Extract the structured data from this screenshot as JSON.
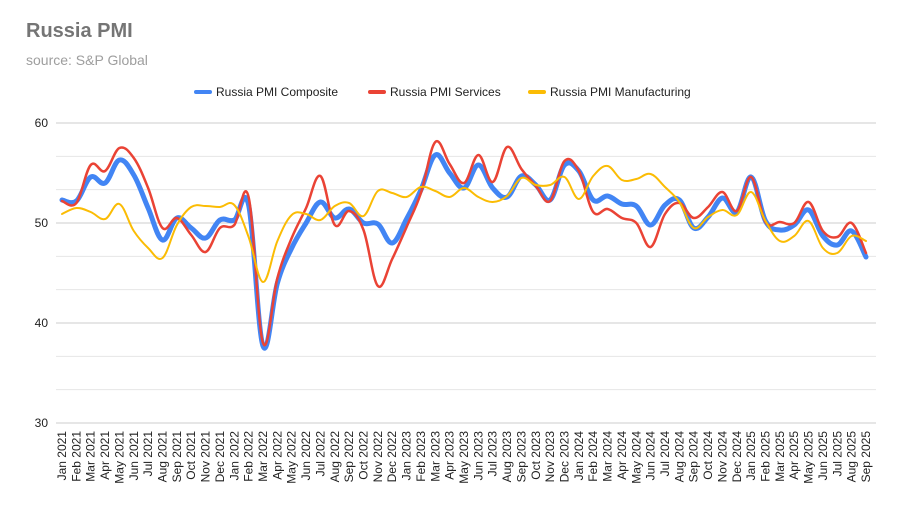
{
  "chart_data": {
    "type": "line",
    "title": "Russia PMI",
    "subtitle": "source: S&P Global",
    "ylim": [
      30,
      60
    ],
    "yticks": [
      30,
      40,
      50,
      60
    ],
    "grid": true,
    "legend_position": "top",
    "categories": [
      "Jan 2021",
      "Feb 2021",
      "Mar 2021",
      "Apr 2021",
      "May 2021",
      "Jun 2021",
      "Jul 2021",
      "Aug 2021",
      "Sep 2021",
      "Oct 2021",
      "Nov 2021",
      "Dec 2021",
      "Jan 2022",
      "Feb 2022",
      "Mar 2022",
      "Apr 2022",
      "May 2022",
      "Jun 2022",
      "Jul 2022",
      "Aug 2022",
      "Sep 2022",
      "Oct 2022",
      "Nov 2022",
      "Dec 2022",
      "Jan 2023",
      "Feb 2023",
      "Mar 2023",
      "Apr 2023",
      "May 2023",
      "Jun 2023",
      "Jul 2023",
      "Aug 2023",
      "Sep 2023",
      "Oct 2023",
      "Nov 2023",
      "Dec 2023",
      "Jan 2024",
      "Feb 2024",
      "Mar 2024",
      "Apr 2024",
      "May 2024",
      "Jun 2024",
      "Jul 2024",
      "Aug 2024",
      "Sep 2024",
      "Oct 2024",
      "Nov 2024",
      "Dec 2024",
      "Jan 2025",
      "Feb 2025",
      "Mar 2025",
      "Apr 2025",
      "May 2025",
      "Jun 2025",
      "Jul 2025",
      "Aug 2025",
      "Sep 2025"
    ],
    "series": [
      {
        "name": "Russia PMI Composite",
        "color": "#4285f4",
        "values": [
          52.3,
          52.2,
          54.6,
          54.0,
          56.3,
          54.8,
          51.5,
          48.3,
          50.5,
          49.5,
          48.5,
          50.3,
          50.3,
          51.8,
          37.7,
          44.0,
          47.5,
          50.0,
          52.1,
          50.5,
          51.4,
          50.0,
          49.9,
          48.0,
          50.4,
          53.3,
          56.8,
          55.0,
          53.5,
          55.8,
          53.5,
          52.6,
          54.7,
          53.8,
          52.3,
          55.8,
          55.2,
          52.3,
          52.7,
          51.9,
          51.7,
          49.8,
          51.8,
          52.3,
          49.5,
          50.6,
          52.5,
          51.1,
          54.6,
          50.2,
          49.3,
          49.8,
          51.3,
          48.7,
          47.8,
          49.2,
          46.6
        ]
      },
      {
        "name": "Russia PMI Services",
        "color": "#ea4335",
        "values": [
          52.2,
          52.0,
          55.8,
          55.2,
          57.5,
          56.5,
          53.5,
          49.5,
          50.5,
          48.8,
          47.1,
          49.5,
          49.8,
          52.6,
          38.0,
          44.5,
          48.5,
          51.5,
          54.7,
          49.8,
          51.2,
          49.3,
          43.7,
          46.4,
          49.6,
          53.0,
          58.1,
          55.9,
          54.0,
          56.8,
          54.1,
          57.6,
          55.4,
          53.7,
          52.2,
          56.2,
          55.2,
          51.1,
          51.4,
          50.5,
          50.0,
          47.6,
          50.9,
          52.0,
          50.5,
          51.6,
          53.1,
          51.2,
          54.6,
          50.1,
          50.1,
          50.0,
          52.1,
          49.2,
          48.6,
          50.0,
          47.0
        ]
      },
      {
        "name": "Russia PMI Manufacturing",
        "color": "#fbbc04",
        "values": [
          50.9,
          51.5,
          51.1,
          50.4,
          51.9,
          49.2,
          47.5,
          46.5,
          49.8,
          51.6,
          51.7,
          51.6,
          51.8,
          48.6,
          44.1,
          48.2,
          50.8,
          50.9,
          50.3,
          51.7,
          52.0,
          50.7,
          53.2,
          53.0,
          52.6,
          53.6,
          53.2,
          52.6,
          53.5,
          52.6,
          52.1,
          52.7,
          54.5,
          53.8,
          53.8,
          54.6,
          52.4,
          54.7,
          55.7,
          54.3,
          54.4,
          54.9,
          53.6,
          52.1,
          49.5,
          50.6,
          51.3,
          50.8,
          53.1,
          50.2,
          48.2,
          48.7,
          50.2,
          47.5,
          47.0,
          48.7,
          48.2
        ]
      }
    ]
  }
}
